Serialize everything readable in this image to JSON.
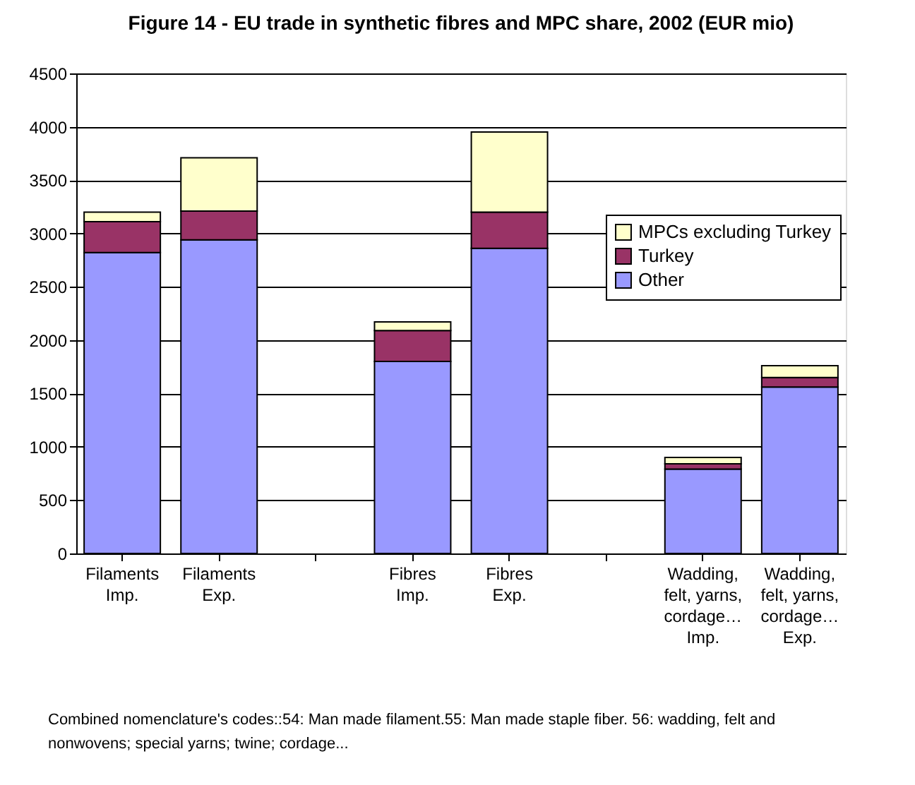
{
  "chart_data": {
    "type": "bar",
    "title": "Figure 14 - EU trade in synthetic fibres and MPC share, 2002 (EUR mio)",
    "categories": [
      "Filaments",
      "Filaments",
      null,
      "Fibres",
      "Fibres",
      null,
      "Wadding, felt, yarns, cordage…",
      "Wadding, felt, yarns, cordage…"
    ],
    "series": [
      {
        "name": "Other",
        "color": "#9999ff",
        "values": [
          2820,
          2940,
          null,
          1800,
          2860,
          null,
          790,
          1560
        ]
      },
      {
        "name": "Turkey",
        "color": "#993366",
        "values": [
          290,
          270,
          null,
          290,
          340,
          null,
          50,
          90
        ]
      },
      {
        "name": "MPCs excluding Turkey",
        "color": "#ffffcc",
        "values": [
          90,
          500,
          null,
          80,
          750,
          null,
          60,
          110
        ]
      }
    ],
    "stacked": true,
    "ylim": [
      0,
      4500
    ],
    "yticks": [
      0,
      500,
      1000,
      1500,
      2000,
      2500,
      3000,
      3500,
      4000,
      4500
    ],
    "grid": "y",
    "legend": "right",
    "annotations": [
      "Imp.",
      "Exp.",
      "Imp.",
      "Exp.",
      "Imp.",
      "Exp.",
      "Combined nomenclature's codes::54: Man made filament.55: Man made staple fiber. 56: wadding, felt and nonwovens; special yarns; twine; cordage..."
    ]
  }
}
